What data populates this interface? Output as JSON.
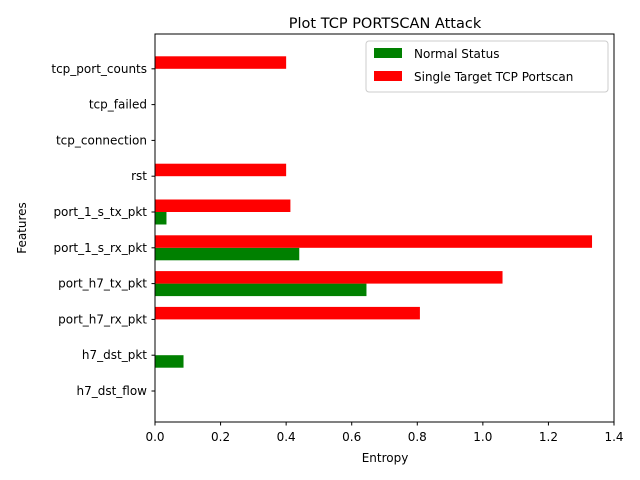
{
  "chart_data": {
    "type": "bar",
    "orientation": "horizontal",
    "title": "Plot TCP PORTSCAN Attack",
    "xlabel": "Entropy",
    "ylabel": "Features",
    "xlim": [
      0,
      1.4
    ],
    "xticks": [
      "0.0",
      "0.2",
      "0.4",
      "0.6",
      "0.8",
      "1.0",
      "1.2",
      "1.4"
    ],
    "categories": [
      "h7_dst_flow",
      "h7_dst_pkt",
      "port_h7_rx_pkt",
      "port_h7_tx_pkt",
      "port_1_s_rx_pkt",
      "port_1_s_tx_pkt",
      "rst",
      "tcp_connection",
      "tcp_failed",
      "tcp_port_counts"
    ],
    "series": [
      {
        "name": "Normal Status",
        "color": "#008000",
        "values": [
          0.0,
          0.087,
          0.0,
          0.645,
          0.44,
          0.035,
          0.0,
          0.0,
          0.0,
          0.0
        ]
      },
      {
        "name": "Single Target TCP Portscan",
        "color": "#ff0000",
        "values": [
          0.0,
          0.0,
          0.808,
          1.06,
          1.333,
          0.413,
          0.4,
          0.0,
          0.0,
          0.4
        ]
      }
    ],
    "grid": false,
    "legend_position": "upper right"
  }
}
